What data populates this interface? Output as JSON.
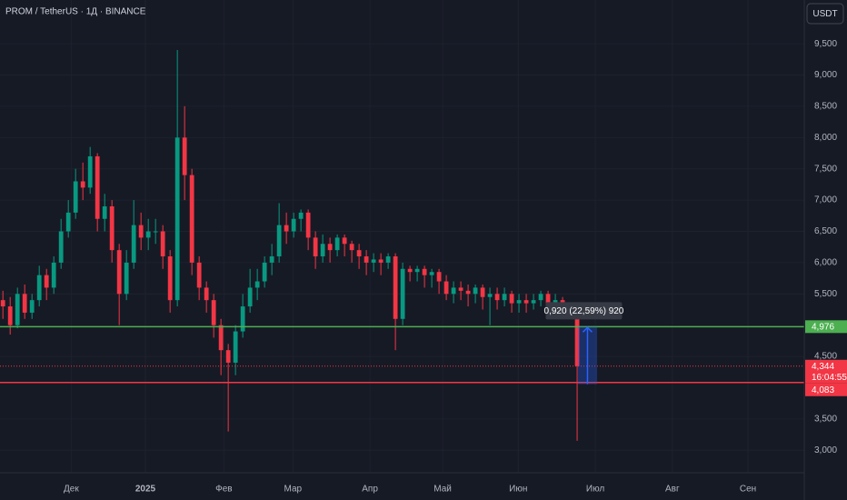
{
  "header": {
    "symbol": "PROM / TetherUS · 1Д · BINANCE",
    "currency": "USDT"
  },
  "chart_data": {
    "type": "candlestick",
    "categories": [
      null,
      null,
      null,
      null,
      null,
      null,
      null,
      null,
      null,
      null,
      null,
      null,
      null,
      null,
      null,
      null,
      null,
      null,
      null,
      null,
      null,
      null,
      null,
      null,
      null,
      null,
      null,
      null,
      null,
      null,
      null,
      null,
      null,
      null,
      null,
      null,
      null,
      null,
      null,
      null,
      null,
      null,
      null,
      null,
      null,
      null,
      null,
      null,
      null,
      null,
      null,
      null,
      null,
      null,
      null,
      null,
      null,
      null,
      null,
      null,
      null,
      null,
      null,
      null,
      null,
      null,
      null,
      null,
      null,
      null,
      null,
      null,
      null,
      null,
      null,
      null,
      null,
      null,
      null,
      null
    ],
    "open": [
      5.4,
      5.3,
      5.0,
      5.5,
      5.2,
      5.4,
      5.8,
      5.6,
      6.0,
      6.5,
      6.8,
      7.3,
      7.2,
      7.7,
      6.7,
      6.9,
      6.2,
      5.5,
      6.0,
      6.6,
      6.4,
      6.5,
      6.5,
      6.1,
      5.4,
      8.0,
      7.4,
      6.0,
      5.6,
      5.4,
      5.0,
      4.6,
      4.4,
      4.9,
      5.3,
      5.6,
      5.7,
      6.0,
      6.1,
      6.6,
      6.5,
      6.7,
      6.8,
      6.4,
      6.1,
      6.3,
      6.2,
      6.4,
      6.3,
      6.2,
      6.1,
      6.0,
      6.05,
      6.0,
      6.1,
      5.1,
      5.9,
      5.85,
      5.9,
      5.8,
      5.85,
      5.7,
      5.5,
      5.6,
      5.55,
      5.5,
      5.6,
      5.45,
      5.5,
      5.4,
      5.5,
      5.35,
      5.4,
      5.35,
      5.4,
      5.5,
      5.35,
      5.4,
      5.3,
      5.25
    ],
    "high": [
      5.55,
      5.45,
      5.6,
      5.65,
      5.5,
      5.95,
      5.9,
      6.1,
      6.7,
      7.0,
      7.5,
      7.6,
      7.85,
      7.75,
      7.1,
      7.0,
      6.3,
      6.2,
      7.0,
      6.8,
      6.7,
      6.7,
      6.6,
      6.2,
      9.4,
      8.5,
      7.5,
      6.1,
      5.7,
      5.5,
      5.1,
      4.7,
      5.0,
      5.5,
      5.9,
      5.9,
      6.1,
      6.3,
      6.95,
      6.8,
      6.8,
      6.85,
      6.85,
      6.5,
      6.45,
      6.4,
      6.45,
      6.45,
      6.35,
      6.3,
      6.2,
      6.15,
      6.15,
      6.15,
      6.15,
      6.0,
      5.95,
      5.95,
      5.95,
      5.9,
      5.9,
      5.8,
      5.7,
      5.7,
      5.65,
      5.65,
      5.65,
      5.6,
      5.6,
      5.6,
      5.55,
      5.5,
      5.5,
      5.5,
      5.55,
      5.55,
      5.5,
      5.45,
      5.35,
      5.3
    ],
    "low": [
      5.1,
      4.85,
      4.95,
      5.1,
      5.1,
      5.3,
      5.4,
      5.5,
      5.9,
      6.4,
      6.7,
      7.0,
      7.1,
      6.5,
      6.5,
      6.0,
      5.0,
      5.4,
      5.9,
      6.2,
      6.2,
      6.3,
      5.9,
      5.2,
      5.3,
      7.0,
      5.8,
      5.4,
      5.2,
      4.8,
      4.2,
      3.3,
      4.2,
      4.8,
      5.2,
      5.4,
      5.6,
      5.8,
      6.0,
      6.3,
      6.4,
      6.5,
      6.2,
      5.9,
      6.0,
      6.0,
      6.1,
      6.1,
      6.0,
      5.9,
      5.8,
      5.85,
      5.8,
      5.9,
      4.6,
      5.0,
      5.7,
      5.7,
      5.6,
      5.6,
      5.5,
      5.4,
      5.35,
      5.4,
      5.3,
      5.35,
      5.25,
      5.0,
      5.25,
      5.3,
      5.2,
      5.2,
      5.2,
      5.25,
      5.3,
      5.2,
      5.25,
      5.2,
      5.1,
      3.15
    ],
    "close": [
      5.3,
      5.0,
      5.5,
      5.2,
      5.4,
      5.8,
      5.6,
      6.0,
      6.5,
      6.8,
      7.3,
      7.2,
      7.7,
      6.7,
      6.9,
      6.2,
      5.5,
      6.0,
      6.6,
      6.4,
      6.5,
      6.5,
      6.1,
      5.4,
      8.0,
      7.4,
      6.0,
      5.6,
      5.4,
      5.0,
      4.6,
      4.4,
      4.9,
      5.3,
      5.6,
      5.7,
      6.0,
      6.1,
      6.6,
      6.5,
      6.7,
      6.8,
      6.4,
      6.1,
      6.3,
      6.2,
      6.4,
      6.3,
      6.2,
      6.1,
      6.0,
      6.05,
      6.0,
      6.1,
      5.1,
      5.9,
      5.85,
      5.9,
      5.8,
      5.85,
      5.7,
      5.5,
      5.6,
      5.55,
      5.5,
      5.6,
      5.45,
      5.5,
      5.4,
      5.5,
      5.35,
      5.4,
      5.35,
      5.4,
      5.5,
      5.35,
      5.4,
      5.3,
      5.25,
      4.344
    ],
    "up_color": "#089981",
    "down_color": "#f23645",
    "ylim": [
      2.64,
      10.2
    ],
    "yticks": [
      {
        "value": 3,
        "label": "3,000"
      },
      {
        "value": 3.5,
        "label": "3,500"
      },
      {
        "value": 4.5,
        "label": "4,500"
      },
      {
        "value": 5.5,
        "label": "5,500"
      },
      {
        "value": 6,
        "label": "6,000"
      },
      {
        "value": 6.5,
        "label": "6,500"
      },
      {
        "value": 7,
        "label": "7,000"
      },
      {
        "value": 7.5,
        "label": "7,500"
      },
      {
        "value": 8,
        "label": "8,000"
      },
      {
        "value": 8.5,
        "label": "8,500"
      },
      {
        "value": 9,
        "label": "9,000"
      },
      {
        "value": 9.5,
        "label": "9,500"
      }
    ],
    "xlim": [
      -0.4,
      110.25
    ],
    "xticks": [
      {
        "value": 9.4,
        "label": "Дек"
      },
      {
        "value": 19.6,
        "label": "2025"
      },
      {
        "value": 30.4,
        "label": "Фев"
      },
      {
        "value": 39.9,
        "label": "Мар"
      },
      {
        "value": 50.5,
        "label": "Апр"
      },
      {
        "value": 60.5,
        "label": "Май"
      },
      {
        "value": 70.9,
        "label": "Июн"
      },
      {
        "value": 81.5,
        "label": "Июл"
      },
      {
        "value": 92.1,
        "label": "Авг"
      },
      {
        "value": 102.5,
        "label": "Сен"
      }
    ],
    "grid": true,
    "hlines": [
      {
        "value": 4.976,
        "label": "4,976",
        "color": "#4caf50"
      },
      {
        "value": 4.083,
        "label": "4,083",
        "color": "#f23645"
      }
    ],
    "last_price": {
      "value": 4.344,
      "label": "4,344",
      "countdown": "16:04:55",
      "color": "#f23645"
    },
    "measure": {
      "from": 4.056,
      "to": 4.976,
      "x": [
        79.1,
        81.75
      ],
      "label": "0,920 (22,59%) 920",
      "color": "#2962ff"
    }
  }
}
